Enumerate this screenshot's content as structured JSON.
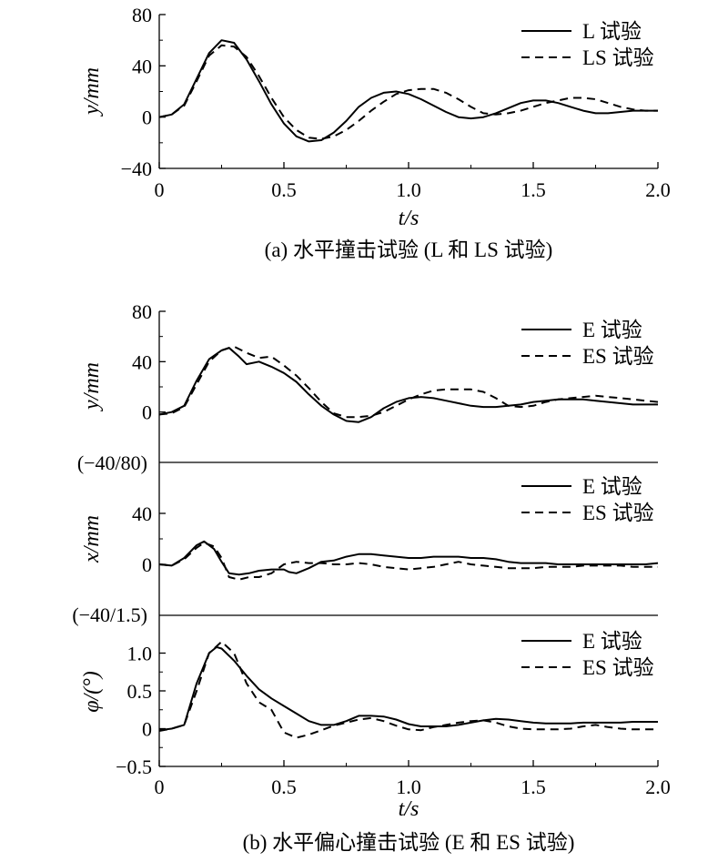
{
  "chart_data": [
    {
      "id": "a",
      "type": "line",
      "caption": "(a) 水平撞击试验 (L 和 LS 试验)",
      "xlabel": "t/s",
      "ylabel": "y/mm",
      "xlim": [
        0,
        2.0
      ],
      "ylim": [
        -40,
        80
      ],
      "xticks": [
        "0",
        "0.5",
        "1.0",
        "1.5",
        "2.0"
      ],
      "yticks": [
        "−40",
        "0",
        "40",
        "80"
      ],
      "legend_position": "top-right",
      "series": [
        {
          "name": "L 试验",
          "style": "solid",
          "x": [
            0,
            0.05,
            0.1,
            0.15,
            0.2,
            0.25,
            0.3,
            0.35,
            0.4,
            0.45,
            0.5,
            0.55,
            0.6,
            0.65,
            0.7,
            0.75,
            0.8,
            0.85,
            0.9,
            0.95,
            1.0,
            1.05,
            1.1,
            1.15,
            1.2,
            1.25,
            1.3,
            1.35,
            1.4,
            1.45,
            1.5,
            1.55,
            1.6,
            1.65,
            1.7,
            1.75,
            1.8,
            1.85,
            1.9,
            1.95,
            2.0
          ],
          "y": [
            0,
            2,
            10,
            30,
            50,
            60,
            58,
            45,
            28,
            10,
            -5,
            -15,
            -19,
            -18,
            -12,
            -3,
            8,
            15,
            19,
            20,
            18,
            14,
            9,
            4,
            0,
            -1,
            0,
            3,
            7,
            11,
            13,
            13,
            11,
            8,
            5,
            3,
            3,
            4,
            5,
            5,
            5
          ]
        },
        {
          "name": "LS 试验",
          "style": "dashed",
          "x": [
            0,
            0.05,
            0.1,
            0.15,
            0.2,
            0.25,
            0.3,
            0.35,
            0.4,
            0.45,
            0.5,
            0.55,
            0.6,
            0.65,
            0.7,
            0.75,
            0.8,
            0.85,
            0.9,
            0.95,
            1.0,
            1.05,
            1.1,
            1.15,
            1.2,
            1.25,
            1.3,
            1.35,
            1.4,
            1.45,
            1.5,
            1.55,
            1.6,
            1.65,
            1.7,
            1.75,
            1.8,
            1.85,
            1.9,
            1.95,
            2.0
          ],
          "y": [
            0,
            2,
            9,
            28,
            48,
            56,
            55,
            47,
            32,
            15,
            0,
            -10,
            -16,
            -17,
            -15,
            -10,
            -3,
            5,
            12,
            18,
            21,
            22,
            22,
            19,
            14,
            8,
            3,
            2,
            3,
            5,
            8,
            11,
            13,
            15,
            15,
            14,
            11,
            8,
            6,
            5,
            5
          ]
        }
      ]
    },
    {
      "id": "b1",
      "type": "line",
      "xlim": [
        0,
        2.0
      ],
      "ylim": [
        -40,
        80
      ],
      "ylabel": "y/mm",
      "yticks": [
        "0",
        "40",
        "80"
      ],
      "ybottom_label": "(−40/80)",
      "legend_position": "top-right",
      "series": [
        {
          "name": "E 试验",
          "style": "solid",
          "x": [
            0,
            0.05,
            0.1,
            0.15,
            0.2,
            0.25,
            0.28,
            0.32,
            0.35,
            0.4,
            0.45,
            0.5,
            0.55,
            0.6,
            0.65,
            0.7,
            0.75,
            0.8,
            0.85,
            0.9,
            0.95,
            1.0,
            1.05,
            1.1,
            1.15,
            1.2,
            1.25,
            1.3,
            1.35,
            1.4,
            1.45,
            1.5,
            1.55,
            1.6,
            1.65,
            1.7,
            1.75,
            1.8,
            1.85,
            1.9,
            1.95,
            2.0
          ],
          "y": [
            -2,
            0,
            5,
            25,
            42,
            49,
            51,
            44,
            38,
            40,
            36,
            31,
            24,
            14,
            5,
            -2,
            -7,
            -8,
            -4,
            3,
            8,
            11,
            12,
            11,
            9,
            7,
            5,
            4,
            4,
            5,
            6,
            8,
            9,
            10,
            10,
            10,
            9,
            8,
            7,
            6,
            6,
            6
          ]
        },
        {
          "name": "ES 试验",
          "style": "dashed",
          "x": [
            0,
            0.05,
            0.1,
            0.15,
            0.2,
            0.25,
            0.3,
            0.35,
            0.4,
            0.45,
            0.5,
            0.55,
            0.6,
            0.65,
            0.7,
            0.75,
            0.8,
            0.85,
            0.9,
            0.95,
            1.0,
            1.05,
            1.1,
            1.15,
            1.2,
            1.25,
            1.3,
            1.35,
            1.4,
            1.45,
            1.5,
            1.55,
            1.6,
            1.65,
            1.7,
            1.75,
            1.8,
            1.85,
            1.9,
            1.95,
            2.0
          ],
          "y": [
            -2,
            -1,
            4,
            22,
            40,
            49,
            52,
            47,
            43,
            44,
            37,
            29,
            19,
            8,
            -1,
            -4,
            -4,
            -3,
            0,
            5,
            10,
            14,
            17,
            18,
            18,
            18,
            16,
            11,
            5,
            4,
            5,
            8,
            10,
            11,
            12,
            13,
            12,
            11,
            10,
            9,
            8
          ]
        }
      ]
    },
    {
      "id": "b2",
      "type": "line",
      "xlim": [
        0,
        2.0
      ],
      "ylim": [
        -40,
        80
      ],
      "ylabel": "x/mm",
      "yticks": [
        "0",
        "40"
      ],
      "ybottom_label": "(−40/1.5)",
      "legend_position": "top-right",
      "series": [
        {
          "name": "E 试验",
          "style": "solid",
          "x": [
            0,
            0.05,
            0.1,
            0.15,
            0.18,
            0.22,
            0.25,
            0.28,
            0.32,
            0.36,
            0.4,
            0.45,
            0.5,
            0.52,
            0.55,
            0.6,
            0.65,
            0.7,
            0.75,
            0.8,
            0.85,
            0.9,
            0.95,
            1.0,
            1.05,
            1.1,
            1.15,
            1.2,
            1.25,
            1.3,
            1.35,
            1.4,
            1.45,
            1.5,
            1.55,
            1.6,
            1.65,
            1.7,
            1.75,
            1.8,
            1.85,
            1.9,
            1.95,
            2.0
          ],
          "y": [
            0,
            -1,
            5,
            15,
            18,
            12,
            2,
            -7,
            -8,
            -7,
            -5,
            -4,
            -4,
            -6,
            -7,
            -3,
            2,
            3,
            6,
            8,
            8,
            7,
            6,
            5,
            5,
            6,
            6,
            6,
            5,
            5,
            4,
            2,
            1,
            1,
            1,
            0,
            0,
            0,
            0,
            0,
            0,
            0,
            0,
            1
          ]
        },
        {
          "name": "ES 试验",
          "style": "dashed",
          "x": [
            0,
            0.05,
            0.1,
            0.15,
            0.18,
            0.22,
            0.25,
            0.28,
            0.32,
            0.36,
            0.4,
            0.45,
            0.5,
            0.55,
            0.6,
            0.65,
            0.7,
            0.75,
            0.8,
            0.85,
            0.9,
            0.95,
            1.0,
            1.05,
            1.1,
            1.15,
            1.2,
            1.25,
            1.3,
            1.35,
            1.4,
            1.45,
            1.5,
            1.55,
            1.6,
            1.65,
            1.7,
            1.75,
            1.8,
            1.85,
            1.9,
            1.95,
            2.0
          ],
          "y": [
            0,
            -1,
            4,
            13,
            17,
            14,
            5,
            -10,
            -12,
            -10,
            -10,
            -7,
            0,
            2,
            1,
            1,
            0,
            0,
            1,
            0,
            -2,
            -3,
            -4,
            -3,
            -2,
            0,
            2,
            0,
            -1,
            -2,
            -3,
            -3,
            -3,
            -2,
            -2,
            -2,
            -1,
            -1,
            -1,
            -1,
            -2,
            -2,
            -2
          ]
        }
      ]
    },
    {
      "id": "b3",
      "type": "line",
      "caption": "(b) 水平偏心撞击试验 (E 和 ES 试验)",
      "xlabel": "t/s",
      "ylabel": "φ/(°)",
      "xlim": [
        0,
        2.0
      ],
      "ylim": [
        -0.5,
        1.5
      ],
      "xticks": [
        "0",
        "0.5",
        "1.0",
        "1.5",
        "2.0"
      ],
      "yticks": [
        "−0.5",
        "0",
        "0.5",
        "1.0"
      ],
      "legend_position": "top-right",
      "series": [
        {
          "name": "E 试验",
          "style": "solid",
          "x": [
            0,
            0.05,
            0.1,
            0.15,
            0.2,
            0.23,
            0.25,
            0.3,
            0.35,
            0.4,
            0.45,
            0.5,
            0.55,
            0.6,
            0.65,
            0.7,
            0.75,
            0.8,
            0.85,
            0.9,
            0.95,
            1.0,
            1.05,
            1.1,
            1.15,
            1.2,
            1.25,
            1.3,
            1.35,
            1.4,
            1.45,
            1.5,
            1.55,
            1.6,
            1.65,
            1.7,
            1.75,
            1.8,
            1.85,
            1.9,
            1.95,
            2.0
          ],
          "y": [
            -0.02,
            0,
            0.05,
            0.6,
            1.0,
            1.08,
            1.06,
            0.9,
            0.7,
            0.52,
            0.4,
            0.3,
            0.2,
            0.1,
            0.05,
            0.05,
            0.1,
            0.17,
            0.17,
            0.16,
            0.12,
            0.06,
            0.03,
            0.03,
            0.03,
            0.05,
            0.08,
            0.11,
            0.13,
            0.12,
            0.1,
            0.08,
            0.07,
            0.07,
            0.07,
            0.08,
            0.08,
            0.08,
            0.08,
            0.09,
            0.09,
            0.09
          ]
        },
        {
          "name": "ES 试验",
          "style": "dashed",
          "x": [
            0,
            0.05,
            0.1,
            0.15,
            0.2,
            0.25,
            0.3,
            0.35,
            0.4,
            0.45,
            0.5,
            0.55,
            0.6,
            0.65,
            0.7,
            0.75,
            0.8,
            0.85,
            0.9,
            0.95,
            1.0,
            1.05,
            1.1,
            1.15,
            1.2,
            1.25,
            1.3,
            1.35,
            1.4,
            1.45,
            1.5,
            1.55,
            1.6,
            1.65,
            1.7,
            1.75,
            1.8,
            1.85,
            1.9,
            1.95,
            2.0
          ],
          "y": [
            -0.03,
            0,
            0.05,
            0.5,
            1.0,
            1.15,
            1.0,
            0.6,
            0.35,
            0.25,
            -0.05,
            -0.12,
            -0.08,
            -0.02,
            0.04,
            0.08,
            0.12,
            0.14,
            0.1,
            0.04,
            -0.01,
            -0.02,
            0.02,
            0.05,
            0.08,
            0.1,
            0.11,
            0.08,
            0.03,
            0.0,
            -0.01,
            -0.01,
            -0.01,
            0.0,
            0.03,
            0.05,
            0.02,
            0.0,
            -0.01,
            -0.01,
            -0.01
          ]
        }
      ]
    }
  ]
}
